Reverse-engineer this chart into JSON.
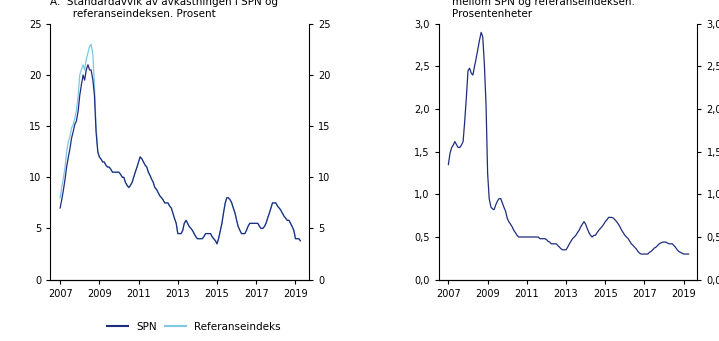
{
  "title_A": "A.  Standardavvik av avkastningen i SPN og\n       referanseindeksen. Prosent",
  "title_B": "B. Standardavvik av differanseavkastningen\n    mellom SPN og referanseindeksen.\n    Prosentenheter",
  "legend_SPN": "SPN",
  "legend_Ref": "Referanseindeks",
  "color_SPN": "#1f2d7e",
  "color_Ref": "#7ec8e3",
  "ylim_A": [
    0,
    25
  ],
  "yticks_A": [
    0,
    5,
    10,
    15,
    20,
    25
  ],
  "ylim_B": [
    0.0,
    3.0
  ],
  "yticks_B": [
    0.0,
    0.5,
    1.0,
    1.5,
    2.0,
    2.5,
    3.0
  ],
  "xticks": [
    2007,
    2009,
    2011,
    2013,
    2015,
    2017,
    2019
  ],
  "xlim": [
    2006.5,
    2019.7
  ],
  "years": [
    2007.0,
    2007.08,
    2007.17,
    2007.25,
    2007.33,
    2007.42,
    2007.5,
    2007.58,
    2007.67,
    2007.75,
    2007.83,
    2007.92,
    2008.0,
    2008.08,
    2008.17,
    2008.25,
    2008.33,
    2008.42,
    2008.5,
    2008.58,
    2008.67,
    2008.75,
    2008.83,
    2008.92,
    2009.0,
    2009.08,
    2009.17,
    2009.25,
    2009.33,
    2009.42,
    2009.5,
    2009.58,
    2009.67,
    2009.75,
    2009.83,
    2009.92,
    2010.0,
    2010.08,
    2010.17,
    2010.25,
    2010.33,
    2010.42,
    2010.5,
    2010.58,
    2010.67,
    2010.75,
    2010.83,
    2010.92,
    2011.0,
    2011.08,
    2011.17,
    2011.25,
    2011.33,
    2011.42,
    2011.5,
    2011.58,
    2011.67,
    2011.75,
    2011.83,
    2011.92,
    2012.0,
    2012.08,
    2012.17,
    2012.25,
    2012.33,
    2012.42,
    2012.5,
    2012.58,
    2012.67,
    2012.75,
    2012.83,
    2012.92,
    2013.0,
    2013.08,
    2013.17,
    2013.25,
    2013.33,
    2013.42,
    2013.5,
    2013.58,
    2013.67,
    2013.75,
    2013.83,
    2013.92,
    2014.0,
    2014.08,
    2014.17,
    2014.25,
    2014.33,
    2014.42,
    2014.5,
    2014.58,
    2014.67,
    2014.75,
    2014.83,
    2014.92,
    2015.0,
    2015.08,
    2015.17,
    2015.25,
    2015.33,
    2015.42,
    2015.5,
    2015.58,
    2015.67,
    2015.75,
    2015.83,
    2015.92,
    2016.0,
    2016.08,
    2016.17,
    2016.25,
    2016.33,
    2016.42,
    2016.5,
    2016.58,
    2016.67,
    2016.75,
    2016.83,
    2016.92,
    2017.0,
    2017.08,
    2017.17,
    2017.25,
    2017.33,
    2017.42,
    2017.5,
    2017.58,
    2017.67,
    2017.75,
    2017.83,
    2017.92,
    2018.0,
    2018.08,
    2018.17,
    2018.25,
    2018.33,
    2018.42,
    2018.5,
    2018.58,
    2018.67,
    2018.75,
    2018.83,
    2018.92,
    2019.0,
    2019.08,
    2019.17,
    2019.25
  ],
  "spn_A": [
    7.0,
    7.8,
    8.8,
    9.8,
    11.0,
    12.0,
    12.8,
    13.8,
    14.5,
    15.2,
    15.5,
    16.5,
    18.0,
    19.0,
    20.0,
    19.5,
    20.5,
    21.0,
    20.5,
    20.5,
    19.5,
    18.0,
    14.5,
    12.5,
    12.0,
    11.8,
    11.5,
    11.5,
    11.2,
    11.0,
    11.0,
    10.8,
    10.5,
    10.5,
    10.5,
    10.5,
    10.5,
    10.3,
    10.0,
    10.0,
    9.5,
    9.2,
    9.0,
    9.2,
    9.5,
    10.0,
    10.5,
    11.0,
    11.5,
    12.0,
    11.8,
    11.5,
    11.2,
    11.0,
    10.5,
    10.2,
    9.8,
    9.5,
    9.0,
    8.8,
    8.5,
    8.2,
    8.0,
    7.8,
    7.5,
    7.5,
    7.5,
    7.2,
    7.0,
    6.5,
    6.0,
    5.5,
    4.5,
    4.5,
    4.5,
    4.8,
    5.5,
    5.8,
    5.5,
    5.2,
    5.0,
    4.8,
    4.5,
    4.2,
    4.0,
    4.0,
    4.0,
    4.0,
    4.2,
    4.5,
    4.5,
    4.5,
    4.5,
    4.2,
    4.0,
    3.8,
    3.5,
    4.0,
    4.8,
    5.5,
    6.5,
    7.5,
    8.0,
    8.0,
    7.8,
    7.5,
    7.0,
    6.5,
    5.8,
    5.2,
    4.8,
    4.5,
    4.5,
    4.5,
    4.8,
    5.2,
    5.5,
    5.5,
    5.5,
    5.5,
    5.5,
    5.5,
    5.2,
    5.0,
    5.0,
    5.2,
    5.5,
    6.0,
    6.5,
    7.0,
    7.5,
    7.5,
    7.5,
    7.2,
    7.0,
    6.8,
    6.5,
    6.2,
    6.0,
    5.8,
    5.8,
    5.5,
    5.2,
    4.8,
    4.0,
    4.0,
    4.0,
    3.8
  ],
  "ref_A": [
    8.0,
    9.0,
    10.0,
    11.0,
    12.5,
    13.5,
    14.0,
    14.8,
    15.2,
    15.8,
    16.5,
    18.0,
    20.0,
    20.5,
    21.0,
    20.5,
    21.5,
    22.2,
    22.8,
    23.0,
    22.0,
    19.0,
    15.0,
    12.5,
    12.0,
    11.8,
    11.5,
    11.5,
    11.2,
    11.0,
    11.0,
    10.8,
    10.5,
    10.5,
    10.5,
    10.5,
    10.5,
    10.3,
    10.0,
    10.0,
    9.5,
    9.2,
    9.0,
    9.2,
    9.5,
    10.0,
    10.5,
    11.0,
    11.5,
    12.0,
    11.8,
    11.5,
    11.2,
    11.0,
    10.5,
    10.2,
    9.8,
    9.5,
    9.0,
    8.8,
    8.5,
    8.2,
    8.0,
    7.8,
    7.5,
    7.5,
    7.5,
    7.2,
    7.0,
    6.5,
    6.0,
    5.5,
    4.5,
    4.5,
    4.5,
    4.8,
    5.5,
    5.8,
    5.5,
    5.2,
    5.0,
    4.8,
    4.5,
    4.2,
    4.0,
    4.0,
    4.0,
    4.0,
    4.2,
    4.5,
    4.5,
    4.5,
    4.5,
    4.2,
    4.0,
    3.8,
    3.5,
    4.0,
    4.8,
    5.5,
    6.5,
    7.5,
    8.0,
    8.0,
    7.8,
    7.5,
    7.0,
    6.5,
    5.8,
    5.2,
    4.8,
    4.5,
    4.5,
    4.5,
    4.8,
    5.2,
    5.5,
    5.5,
    5.5,
    5.5,
    5.5,
    5.5,
    5.2,
    5.0,
    5.0,
    5.2,
    5.5,
    6.0,
    6.5,
    7.0,
    7.5,
    7.5,
    7.5,
    7.2,
    7.0,
    6.8,
    6.5,
    6.2,
    6.0,
    5.8,
    5.8,
    5.5,
    5.2,
    4.8,
    4.0,
    4.0,
    4.0,
    3.8
  ],
  "diff_B": [
    1.35,
    1.48,
    1.55,
    1.58,
    1.62,
    1.58,
    1.55,
    1.55,
    1.58,
    1.62,
    1.85,
    2.15,
    2.45,
    2.48,
    2.42,
    2.4,
    2.5,
    2.6,
    2.7,
    2.8,
    2.9,
    2.85,
    2.55,
    2.05,
    1.25,
    0.95,
    0.85,
    0.83,
    0.82,
    0.88,
    0.92,
    0.95,
    0.95,
    0.9,
    0.85,
    0.8,
    0.72,
    0.68,
    0.65,
    0.62,
    0.58,
    0.55,
    0.52,
    0.5,
    0.5,
    0.5,
    0.5,
    0.5,
    0.5,
    0.5,
    0.5,
    0.5,
    0.5,
    0.5,
    0.5,
    0.5,
    0.48,
    0.48,
    0.48,
    0.48,
    0.47,
    0.45,
    0.44,
    0.42,
    0.42,
    0.42,
    0.42,
    0.4,
    0.38,
    0.36,
    0.35,
    0.35,
    0.35,
    0.38,
    0.42,
    0.45,
    0.48,
    0.5,
    0.52,
    0.55,
    0.58,
    0.62,
    0.65,
    0.68,
    0.65,
    0.6,
    0.55,
    0.52,
    0.5,
    0.52,
    0.52,
    0.55,
    0.58,
    0.6,
    0.62,
    0.65,
    0.68,
    0.7,
    0.73,
    0.73,
    0.73,
    0.72,
    0.7,
    0.68,
    0.65,
    0.62,
    0.58,
    0.55,
    0.52,
    0.5,
    0.48,
    0.45,
    0.42,
    0.4,
    0.38,
    0.36,
    0.33,
    0.31,
    0.3,
    0.3,
    0.3,
    0.3,
    0.3,
    0.32,
    0.33,
    0.35,
    0.37,
    0.38,
    0.4,
    0.42,
    0.43,
    0.44,
    0.44,
    0.44,
    0.43,
    0.42,
    0.42,
    0.42,
    0.4,
    0.38,
    0.35,
    0.33,
    0.32,
    0.31,
    0.3,
    0.3,
    0.3,
    0.3
  ]
}
